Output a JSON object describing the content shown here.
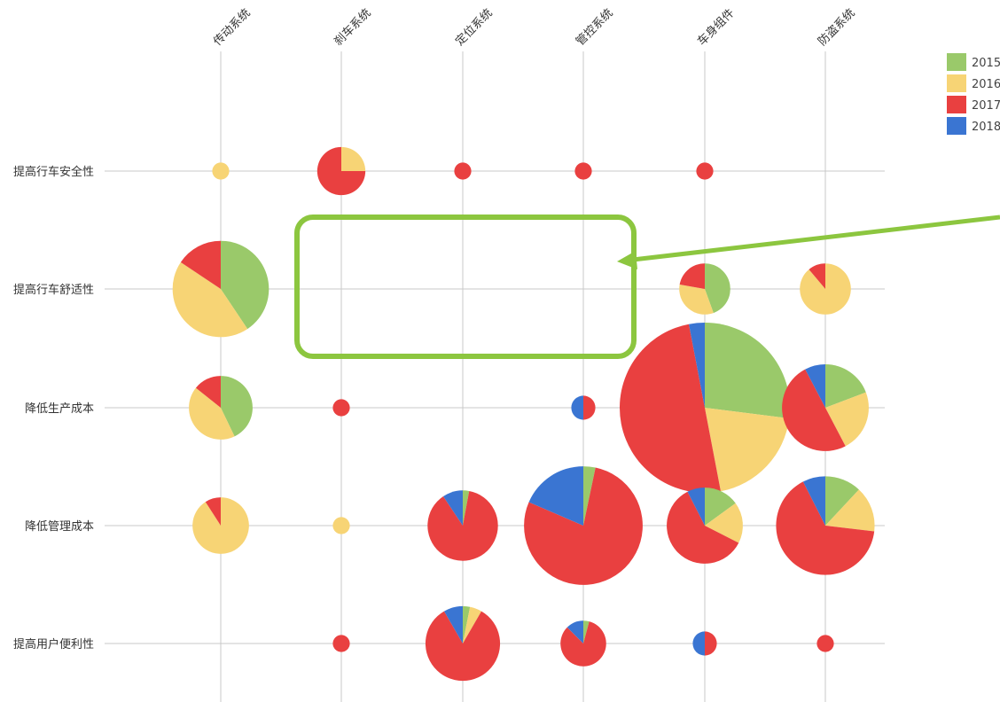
{
  "chart_data": {
    "type": "pie-matrix",
    "columns": [
      "传动系统",
      "刹车系统",
      "定位系统",
      "管控系统",
      "车身组件",
      "防盗系统"
    ],
    "rows": [
      "提高行车安全性",
      "提高行车舒适性",
      "降低生产成本",
      "降低管理成本",
      "提高用户便利性"
    ],
    "series": [
      {
        "name": "2015",
        "color": "#9ac96a"
      },
      {
        "name": "2016",
        "color": "#f7d475"
      },
      {
        "name": "2017",
        "color": "#e94040"
      },
      {
        "name": "2018",
        "color": "#3a75d2"
      }
    ],
    "legend_position": "top-right",
    "cells": [
      {
        "row": 0,
        "col": 0,
        "values": [
          0,
          1,
          0,
          0
        ]
      },
      {
        "row": 0,
        "col": 1,
        "values": [
          0,
          2,
          6,
          0
        ]
      },
      {
        "row": 0,
        "col": 2,
        "values": [
          0,
          0,
          1,
          0
        ]
      },
      {
        "row": 0,
        "col": 3,
        "values": [
          0,
          0,
          1,
          0
        ]
      },
      {
        "row": 0,
        "col": 4,
        "values": [
          0,
          0,
          1,
          0
        ]
      },
      {
        "row": 1,
        "col": 0,
        "values": [
          13,
          14,
          5,
          0
        ]
      },
      {
        "row": 1,
        "col": 4,
        "values": [
          4,
          3,
          2,
          0
        ]
      },
      {
        "row": 1,
        "col": 5,
        "values": [
          0,
          8,
          1,
          0
        ]
      },
      {
        "row": 2,
        "col": 0,
        "values": [
          6,
          6,
          2,
          0
        ]
      },
      {
        "row": 2,
        "col": 1,
        "values": [
          0,
          0,
          1,
          0
        ]
      },
      {
        "row": 2,
        "col": 3,
        "values": [
          0,
          0,
          1,
          1
        ]
      },
      {
        "row": 2,
        "col": 4,
        "values": [
          27,
          20,
          50,
          3
        ]
      },
      {
        "row": 2,
        "col": 5,
        "values": [
          5,
          6,
          13,
          2
        ]
      },
      {
        "row": 3,
        "col": 0,
        "values": [
          0,
          10,
          1,
          0
        ]
      },
      {
        "row": 3,
        "col": 1,
        "values": [
          0,
          1,
          0,
          0
        ]
      },
      {
        "row": 3,
        "col": 2,
        "values": [
          0.5,
          0,
          15,
          1.6
        ]
      },
      {
        "row": 3,
        "col": 3,
        "values": [
          1.6,
          0,
          38,
          9
        ]
      },
      {
        "row": 3,
        "col": 4,
        "values": [
          3,
          3.5,
          12,
          1.5
        ]
      },
      {
        "row": 3,
        "col": 5,
        "values": [
          4,
          5,
          22,
          2.5
        ]
      },
      {
        "row": 4,
        "col": 1,
        "values": [
          0,
          0,
          1,
          0
        ]
      },
      {
        "row": 4,
        "col": 2,
        "values": [
          0.6,
          1,
          16,
          1.6
        ]
      },
      {
        "row": 4,
        "col": 3,
        "values": [
          0.3,
          0,
          6,
          0.9
        ]
      },
      {
        "row": 4,
        "col": 4,
        "values": [
          0,
          0,
          1,
          1
        ]
      },
      {
        "row": 4,
        "col": 5,
        "values": [
          0,
          0,
          1,
          0
        ]
      }
    ]
  },
  "annotation": {
    "box_color": "#8cc63f",
    "arrow_color": "#8cc63f"
  }
}
